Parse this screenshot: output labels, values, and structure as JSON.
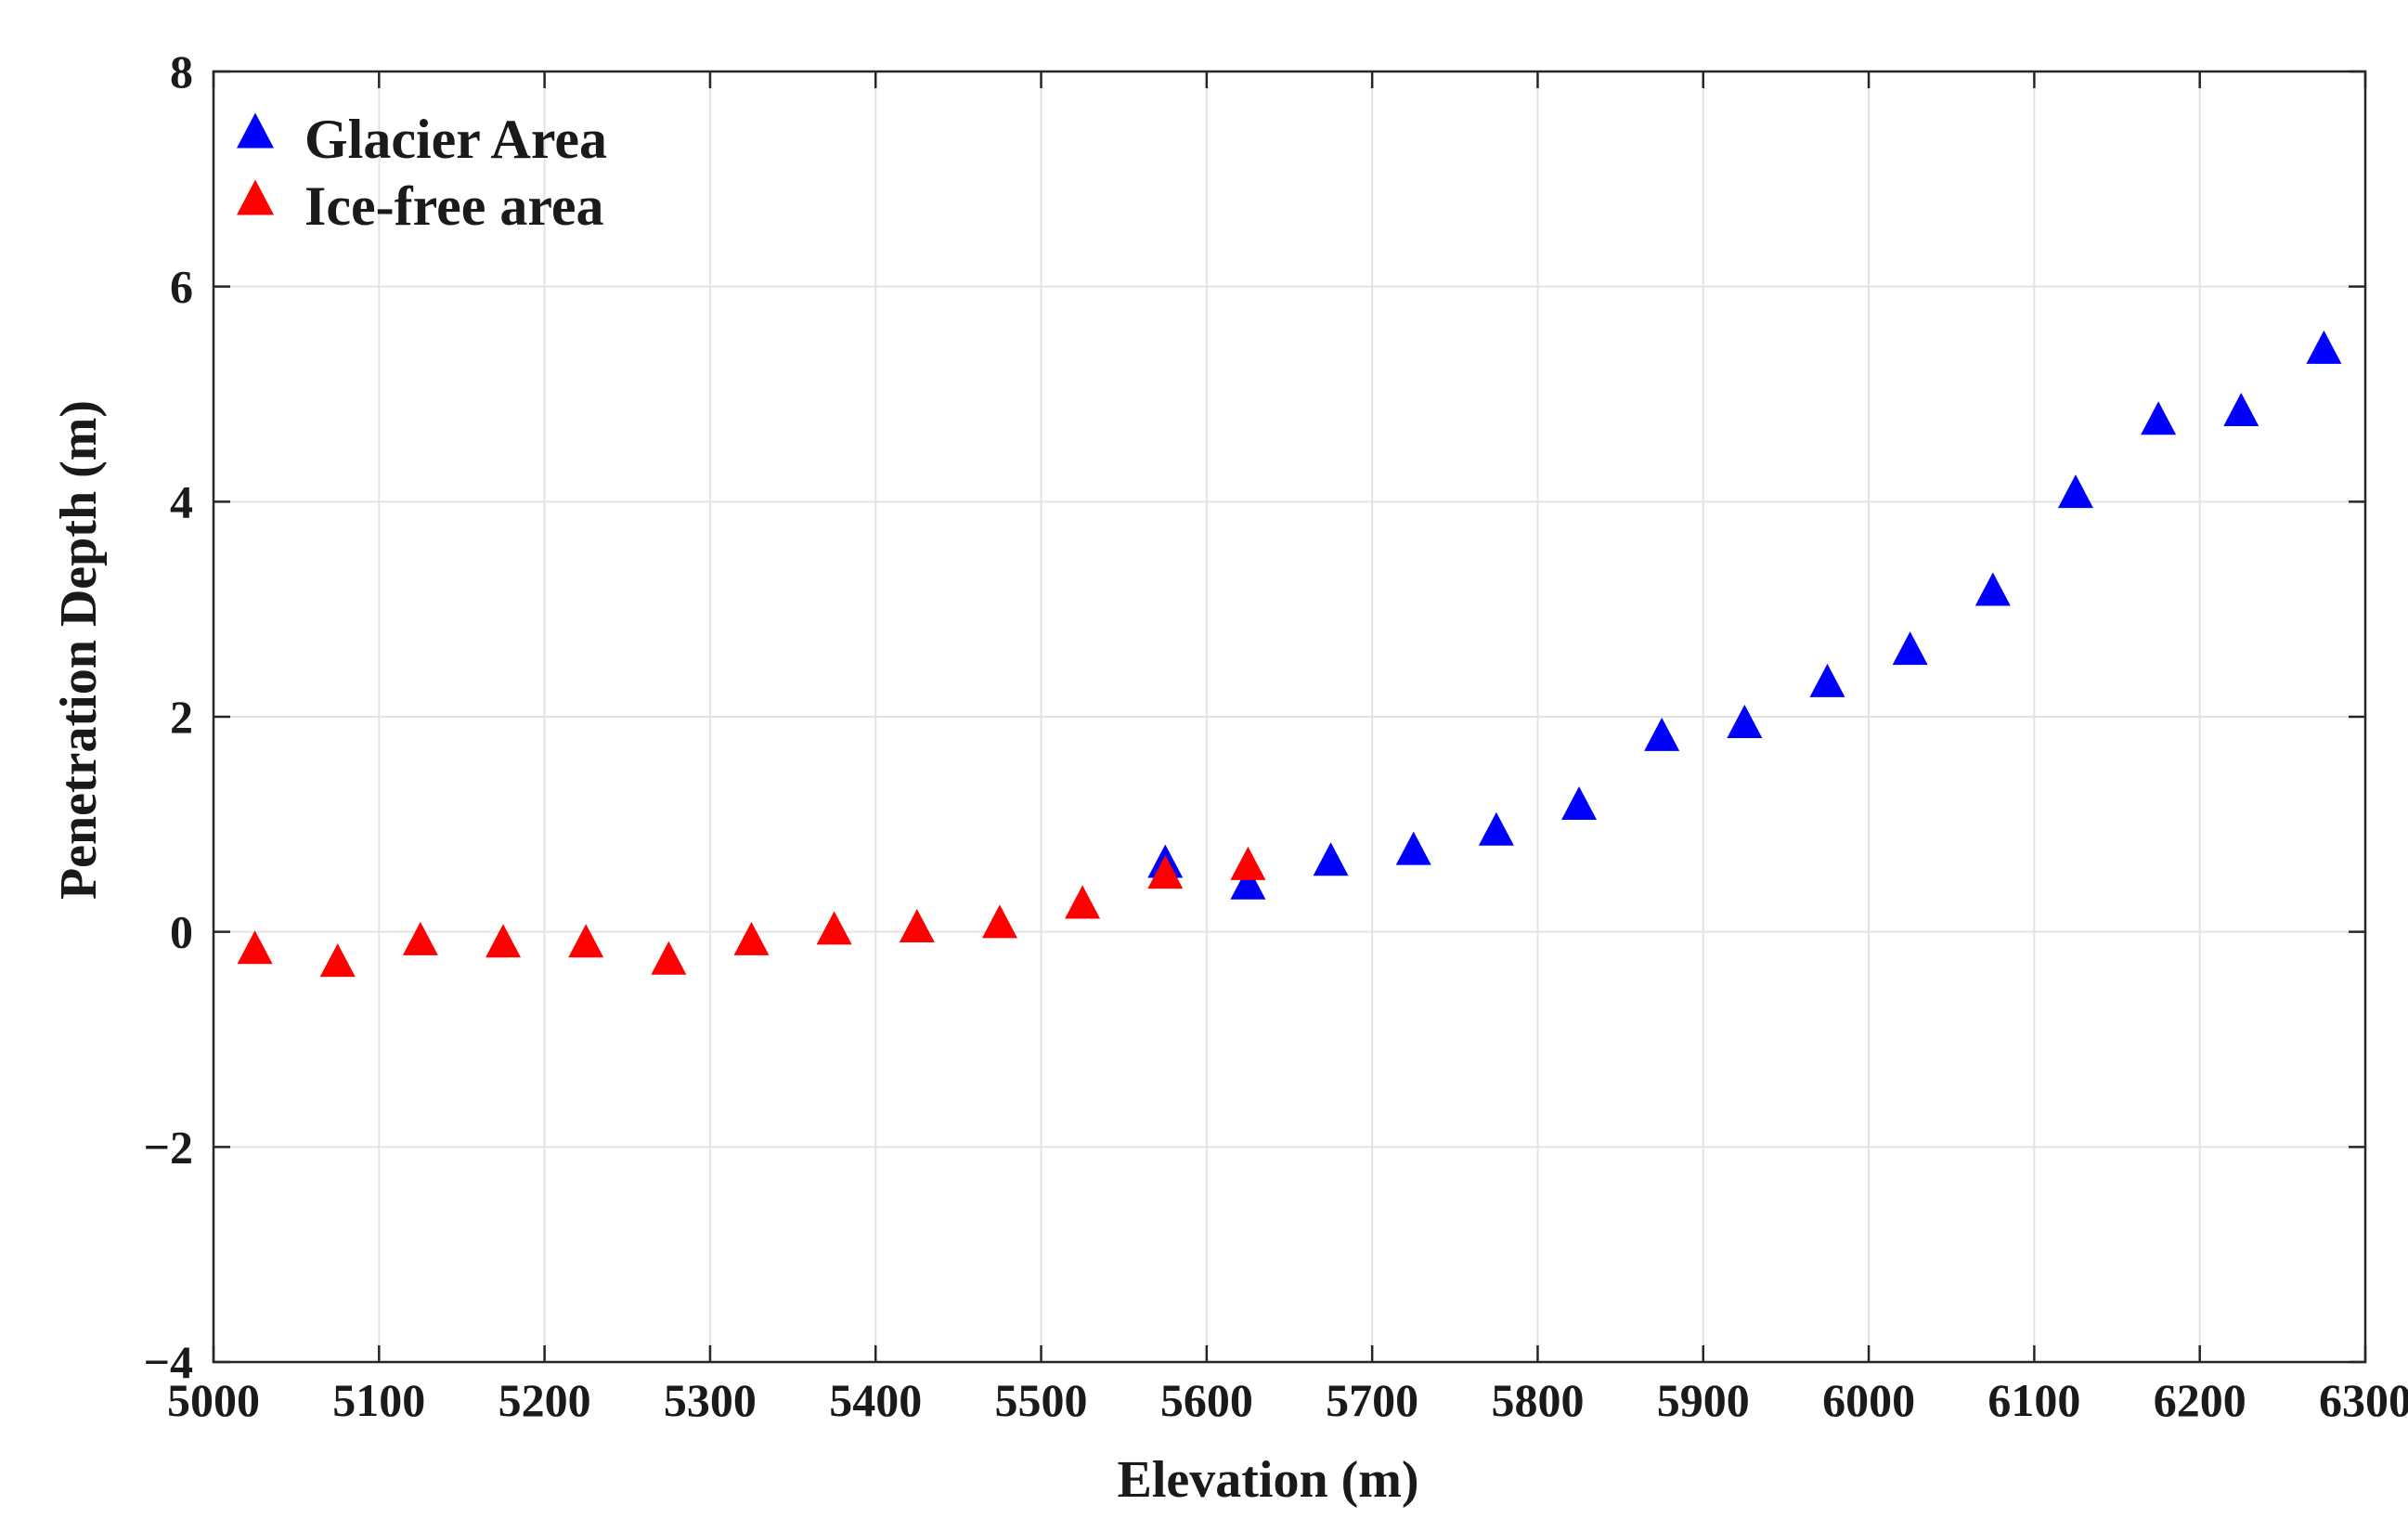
{
  "chart_data": {
    "type": "scatter",
    "title": "",
    "xlabel": "Elevation (m)",
    "ylabel": "Penetration Depth (m)",
    "xlim": [
      5000,
      6300
    ],
    "ylim": [
      -4,
      8
    ],
    "xticks": [
      5000,
      5100,
      5200,
      5300,
      5400,
      5500,
      5600,
      5700,
      5800,
      5900,
      6000,
      6100,
      6200,
      6300
    ],
    "yticks": [
      -4,
      -2,
      0,
      2,
      4,
      6,
      8
    ],
    "ytick_labels": [
      "−4",
      "−2",
      "0",
      "2",
      "4",
      "6",
      "8"
    ],
    "grid": true,
    "legend_position": "top-left",
    "series": [
      {
        "name": "Glacier Area",
        "color": "#0000ff",
        "marker": "triangle",
        "x": [
          5575,
          5625,
          5675,
          5725,
          5775,
          5825,
          5875,
          5925,
          5975,
          6025,
          6075,
          6125,
          6175,
          6225,
          6275
        ],
        "y": [
          0.62,
          0.42,
          0.64,
          0.74,
          0.92,
          1.16,
          1.8,
          1.92,
          2.3,
          2.6,
          3.15,
          4.06,
          4.74,
          4.82,
          5.4
        ]
      },
      {
        "name": "Ice-free area",
        "color": "#ff0000",
        "marker": "triangle",
        "x": [
          5025,
          5075,
          5125,
          5175,
          5225,
          5275,
          5325,
          5375,
          5425,
          5475,
          5525,
          5575,
          5625
        ],
        "y": [
          -0.18,
          -0.3,
          -0.1,
          -0.12,
          -0.12,
          -0.28,
          -0.1,
          0.0,
          0.02,
          0.06,
          0.24,
          0.52,
          0.6
        ]
      }
    ]
  }
}
